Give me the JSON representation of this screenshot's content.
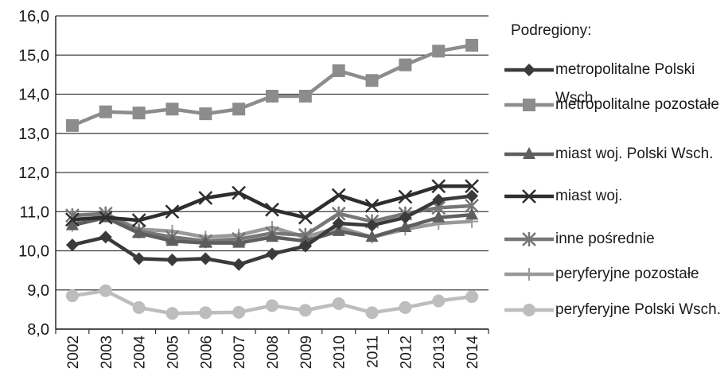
{
  "chart_data": {
    "type": "line",
    "x": [
      "2002",
      "2003",
      "2004",
      "2005",
      "2006",
      "2007",
      "2008",
      "2009",
      "2010",
      "2011",
      "2012",
      "2013",
      "2014"
    ],
    "ylim": [
      8.0,
      16.0
    ],
    "yticks": [
      "8,0",
      "9,0",
      "10,0",
      "11,0",
      "12,0",
      "13,0",
      "14,0",
      "15,0",
      "16,0"
    ],
    "grid": true,
    "legend_title": "Podregiony:",
    "legend_position": "right",
    "series": [
      {
        "name": "metropolitalne Polski Wsch.",
        "color": "#3a3a3a",
        "marker": "diamond",
        "values": [
          10.15,
          10.35,
          9.8,
          9.77,
          9.8,
          9.65,
          9.92,
          10.12,
          10.7,
          10.65,
          10.85,
          11.3,
          11.4
        ]
      },
      {
        "name": "metropolitalne pozostałe",
        "color": "#8c8c8c",
        "marker": "square",
        "values": [
          13.2,
          13.55,
          13.52,
          13.62,
          13.5,
          13.62,
          13.95,
          13.95,
          14.6,
          14.35,
          14.75,
          15.1,
          15.25
        ]
      },
      {
        "name": "miast woj. Polski Wsch.",
        "color": "#5e5e5e",
        "marker": "triangle",
        "values": [
          10.65,
          10.85,
          10.45,
          10.25,
          10.2,
          10.2,
          10.35,
          10.25,
          10.5,
          10.35,
          10.6,
          10.85,
          10.92
        ]
      },
      {
        "name": "miast woj.",
        "color": "#2e2e2e",
        "marker": "x",
        "values": [
          10.8,
          10.85,
          10.78,
          11.0,
          11.35,
          11.48,
          11.05,
          10.85,
          11.42,
          11.15,
          11.38,
          11.65,
          11.65
        ]
      },
      {
        "name": "inne pośrednie",
        "color": "#777777",
        "marker": "star",
        "values": [
          10.9,
          10.95,
          10.5,
          10.35,
          10.25,
          10.3,
          10.45,
          10.4,
          10.95,
          10.75,
          10.95,
          11.1,
          11.15
        ]
      },
      {
        "name": "peryferyjne pozostałe",
        "color": "#999999",
        "marker": "plus",
        "values": [
          10.65,
          10.95,
          10.55,
          10.5,
          10.35,
          10.4,
          10.6,
          10.35,
          10.6,
          10.35,
          10.55,
          10.7,
          10.75
        ]
      },
      {
        "name": "peryferyjne Polski Wsch.",
        "color": "#bdbdbd",
        "marker": "circle",
        "values": [
          8.85,
          8.98,
          8.55,
          8.4,
          8.42,
          8.43,
          8.6,
          8.48,
          8.65,
          8.42,
          8.55,
          8.72,
          8.83
        ]
      }
    ]
  }
}
